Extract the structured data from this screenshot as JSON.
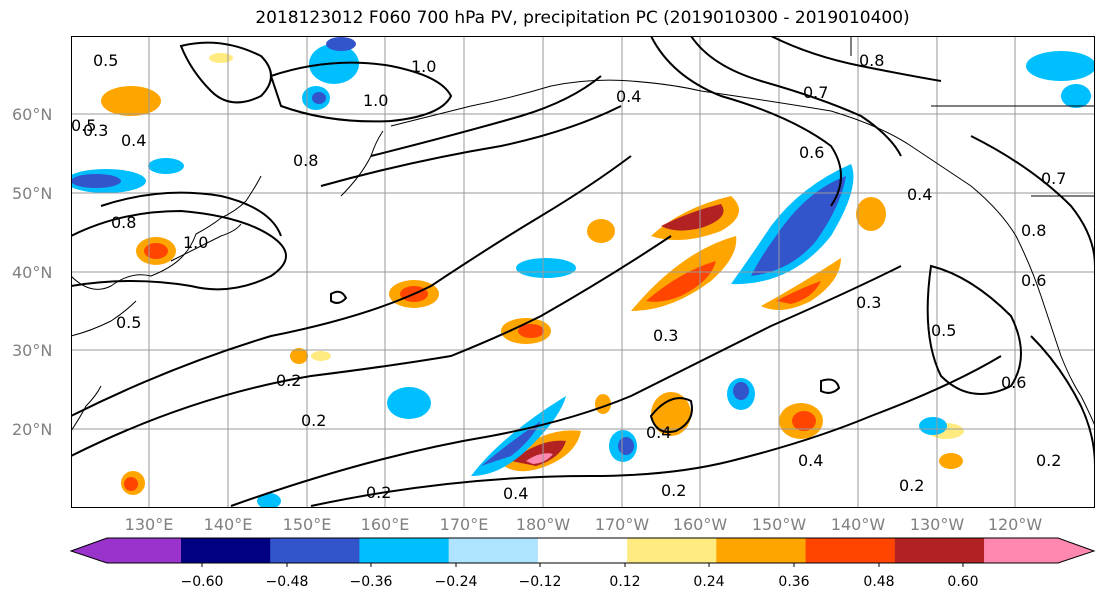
{
  "title": "2018123012 F060 700 hPa PV, precipitation PC (2019010300 - 2019010400)",
  "map": {
    "latitudes": [
      "60°N",
      "50°N",
      "40°N",
      "30°N",
      "20°N"
    ],
    "longitudes": [
      "130°E",
      "140°E",
      "150°E",
      "160°E",
      "170°E",
      "180°W",
      "170°W",
      "160°W",
      "150°W",
      "140°W",
      "130°W",
      "120°W"
    ],
    "contour_labels": [
      "0.5",
      "1.0",
      "1.0",
      "0.8",
      "0.4",
      "0.8",
      "0.7",
      "0.5",
      "0.3",
      "0.4",
      "0.8",
      "1.0",
      "0.6",
      "0.4",
      "0.2",
      "0.3",
      "0.5",
      "0.6",
      "0.3",
      "0.2",
      "0.2",
      "0.2",
      "0.4",
      "0.4",
      "0.4",
      "0.2",
      "0.2",
      "0.5",
      "0.6",
      "0.7",
      "0.8"
    ]
  },
  "colorbar": {
    "ticks": [
      "−0.60",
      "−0.48",
      "−0.36",
      "−0.24",
      "−0.12",
      "0.12",
      "0.24",
      "0.36",
      "0.48",
      "0.60"
    ],
    "colors": [
      "#9933cc",
      "#000080",
      "#3355cc",
      "#00bfff",
      "#aee4ff",
      "#ffffff",
      "#ffeb80",
      "#ffa500",
      "#ff4500",
      "#b22222",
      "#ff88b0"
    ]
  }
}
